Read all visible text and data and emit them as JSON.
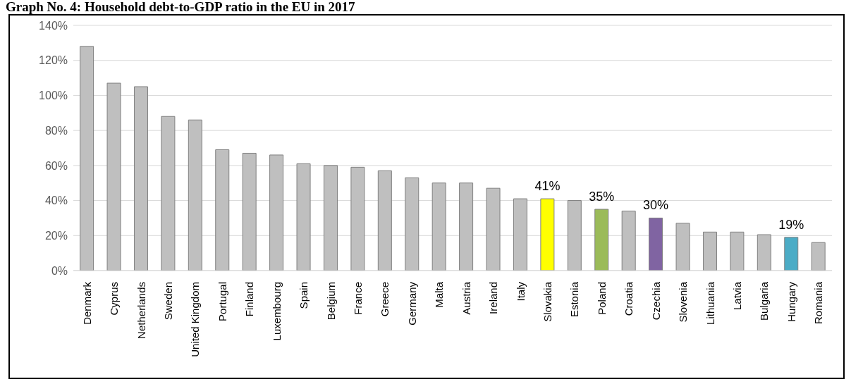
{
  "chart_data": {
    "type": "bar",
    "title": "Graph No. 4: Household debt-to-GDP ratio in the EU in 2017",
    "categories": [
      "Denmark",
      "Cyprus",
      "Netherlands",
      "Sweden",
      "United Kingdom",
      "Portugal",
      "Finland",
      "Luxembourg",
      "Spain",
      "Belgium",
      "France",
      "Greece",
      "Germany",
      "Malta",
      "Austria",
      "Ireland",
      "Italy",
      "Slovakia",
      "Estonia",
      "Poland",
      "Croatia",
      "Czechia",
      "Slovenia",
      "Lithuania",
      "Latvia",
      "Bulgaria",
      "Hungary",
      "Romania"
    ],
    "values": [
      128,
      107,
      105,
      88,
      86,
      69,
      67,
      66,
      61,
      60,
      59,
      57,
      53,
      50,
      50,
      47,
      41,
      41,
      40,
      35,
      34,
      30,
      27,
      22,
      22,
      20.5,
      19,
      16
    ],
    "colors": [
      "#bfbfbf",
      "#bfbfbf",
      "#bfbfbf",
      "#bfbfbf",
      "#bfbfbf",
      "#bfbfbf",
      "#bfbfbf",
      "#bfbfbf",
      "#bfbfbf",
      "#bfbfbf",
      "#bfbfbf",
      "#bfbfbf",
      "#bfbfbf",
      "#bfbfbf",
      "#bfbfbf",
      "#bfbfbf",
      "#bfbfbf",
      "#ffff00",
      "#bfbfbf",
      "#9bbb59",
      "#bfbfbf",
      "#8064a2",
      "#bfbfbf",
      "#bfbfbf",
      "#bfbfbf",
      "#bfbfbf",
      "#4bacc6",
      "#bfbfbf"
    ],
    "value_labels": [
      null,
      null,
      null,
      null,
      null,
      null,
      null,
      null,
      null,
      null,
      null,
      null,
      null,
      null,
      null,
      null,
      null,
      "41%",
      null,
      "35%",
      null,
      "30%",
      null,
      null,
      null,
      null,
      "19%",
      null
    ],
    "ylim": [
      0,
      140
    ],
    "yticks": [
      {
        "value": 0,
        "label": "0%"
      },
      {
        "value": 20,
        "label": "20%"
      },
      {
        "value": 40,
        "label": "40%"
      },
      {
        "value": 60,
        "label": "60%"
      },
      {
        "value": 80,
        "label": "80%"
      },
      {
        "value": 100,
        "label": "100%"
      },
      {
        "value": 120,
        "label": "120%"
      },
      {
        "value": 140,
        "label": "140%"
      }
    ],
    "grid": "y"
  }
}
